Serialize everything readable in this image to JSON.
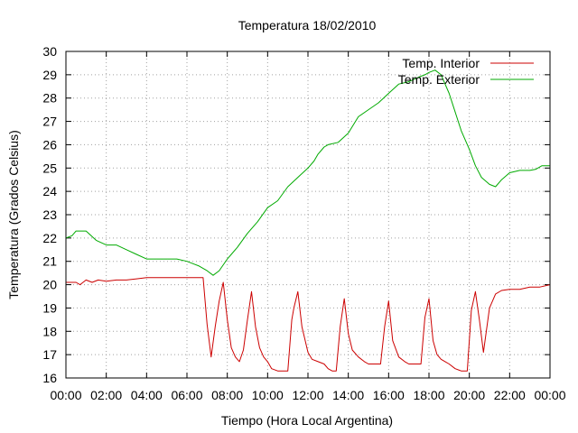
{
  "chart_data": {
    "type": "line",
    "title": "Temperatura 18/02/2010",
    "xlabel": "Tiempo (Hora Local Argentina)",
    "ylabel": "Temperatura (Grados Celsius)",
    "xlim": [
      0,
      24
    ],
    "ylim": [
      16,
      30
    ],
    "x_ticks": [
      "00:00",
      "02:00",
      "04:00",
      "06:00",
      "08:00",
      "10:00",
      "12:00",
      "14:00",
      "16:00",
      "18:00",
      "20:00",
      "22:00",
      "00:00"
    ],
    "y_ticks": [
      "16",
      "17",
      "18",
      "19",
      "20",
      "21",
      "22",
      "23",
      "24",
      "25",
      "26",
      "27",
      "28",
      "29",
      "30"
    ],
    "grid": true,
    "legend_position": "top-right",
    "series": [
      {
        "name": "Temp. Interior",
        "color": "#cc0000",
        "x": [
          0,
          0.5,
          0.7,
          1,
          1.3,
          1.6,
          2,
          2.5,
          3,
          3.5,
          4,
          4.5,
          5,
          5.5,
          6,
          6.5,
          6.8,
          7.0,
          7.2,
          7.4,
          7.6,
          7.8,
          8.0,
          8.2,
          8.4,
          8.6,
          8.8,
          9.0,
          9.2,
          9.4,
          9.6,
          9.8,
          10.0,
          10.2,
          10.5,
          10.8,
          11.0,
          11.2,
          11.3,
          11.5,
          11.7,
          12.0,
          12.2,
          12.5,
          12.8,
          13.0,
          13.2,
          13.4,
          13.6,
          13.8,
          14.0,
          14.2,
          14.5,
          14.8,
          15.0,
          15.2,
          15.5,
          15.6,
          15.8,
          16.0,
          16.2,
          16.5,
          16.8,
          17.0,
          17.2,
          17.4,
          17.6,
          17.8,
          18.0,
          18.2,
          18.4,
          18.6,
          18.8,
          19.0,
          19.3,
          19.6,
          19.9,
          20.1,
          20.3,
          20.5,
          20.7,
          21.0,
          21.3,
          21.6,
          22.0,
          22.5,
          23.0,
          23.5,
          24.0
        ],
        "values": [
          20.1,
          20.1,
          20.0,
          20.2,
          20.1,
          20.2,
          20.15,
          20.2,
          20.2,
          20.25,
          20.3,
          20.3,
          20.3,
          20.3,
          20.3,
          20.3,
          20.3,
          18.3,
          16.9,
          18.2,
          19.3,
          20.1,
          18.5,
          17.3,
          16.9,
          16.7,
          17.2,
          18.5,
          19.7,
          18.2,
          17.3,
          16.9,
          16.7,
          16.4,
          16.3,
          16.3,
          16.3,
          18.5,
          19.0,
          19.7,
          18.2,
          17.1,
          16.8,
          16.7,
          16.6,
          16.4,
          16.3,
          16.3,
          18.2,
          19.4,
          17.9,
          17.2,
          16.9,
          16.7,
          16.6,
          16.6,
          16.6,
          16.6,
          18.2,
          19.3,
          17.6,
          16.9,
          16.7,
          16.6,
          16.6,
          16.6,
          16.6,
          18.6,
          19.4,
          17.6,
          17.0,
          16.8,
          16.7,
          16.6,
          16.4,
          16.3,
          16.3,
          18.9,
          19.7,
          18.5,
          17.1,
          19.0,
          19.6,
          19.75,
          19.8,
          19.8,
          19.9,
          19.9,
          20.0
        ]
      },
      {
        "name": "Temp. Exterior",
        "color": "#00aa00",
        "x": [
          0,
          0.3,
          0.5,
          1,
          1.5,
          2,
          2.5,
          3,
          3.5,
          4,
          4.5,
          5,
          5.5,
          6,
          6.3,
          6.6,
          7.0,
          7.3,
          7.6,
          8.0,
          8.5,
          9.0,
          9.5,
          10.0,
          10.5,
          11.0,
          11.5,
          12.0,
          12.3,
          12.5,
          12.8,
          13.0,
          13.5,
          14.0,
          14.5,
          15.0,
          15.5,
          16.0,
          16.5,
          17.0,
          17.5,
          17.8,
          18.0,
          18.3,
          18.6,
          19.0,
          19.3,
          19.6,
          20.0,
          20.3,
          20.6,
          21.0,
          21.3,
          21.6,
          22.0,
          22.5,
          23.0,
          23.3,
          23.6,
          24.0
        ],
        "values": [
          22.0,
          22.1,
          22.3,
          22.3,
          21.9,
          21.7,
          21.7,
          21.5,
          21.3,
          21.1,
          21.1,
          21.1,
          21.1,
          21.0,
          20.9,
          20.8,
          20.6,
          20.4,
          20.6,
          21.1,
          21.6,
          22.2,
          22.7,
          23.3,
          23.6,
          24.2,
          24.6,
          25.0,
          25.3,
          25.6,
          25.9,
          26.0,
          26.1,
          26.5,
          27.2,
          27.5,
          27.8,
          28.2,
          28.6,
          28.7,
          28.9,
          29.0,
          29.1,
          29.2,
          29.0,
          28.2,
          27.4,
          26.6,
          25.8,
          25.1,
          24.6,
          24.3,
          24.2,
          24.5,
          24.8,
          24.9,
          24.9,
          24.95,
          25.1,
          25.1
        ]
      }
    ]
  }
}
